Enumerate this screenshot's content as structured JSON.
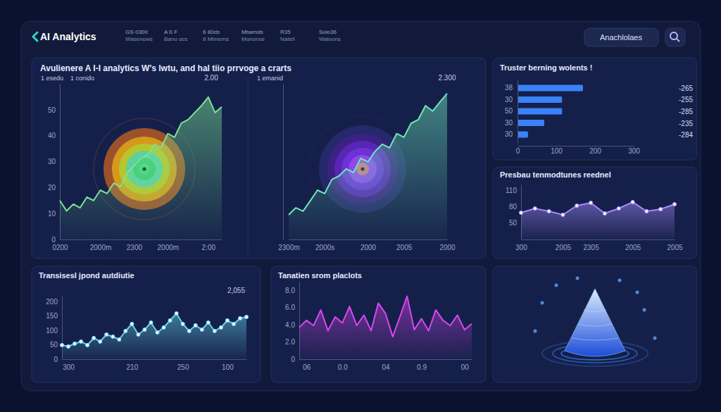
{
  "header": {
    "logo": "AI Analytics",
    "nav": [
      [
        "GS·0300",
        "Wasenows"
      ],
      [
        "A ß F",
        "Banu ocs"
      ],
      [
        "6 80ds",
        "8 Mlmems"
      ],
      [
        "Mbamds",
        "Mononse"
      ],
      [
        "R35",
        "Nateil"
      ],
      [
        "Sulo36",
        "Waloons"
      ]
    ],
    "search": "Anachlolaes"
  },
  "overview_title": "Avulienere A I-I analytics W's lwtu, and hal tiio prrvoge a crarts",
  "chart_data": [
    {
      "type": "line",
      "title": "1 esedu",
      "subtitle": "1 conido",
      "annotations": [
        "2.00"
      ],
      "color": "#7be495",
      "categories": [
        "0200",
        null,
        null,
        null,
        null,
        null,
        "2000m",
        null,
        null,
        null,
        null,
        "2300",
        null,
        null,
        null,
        null,
        "2000m",
        null,
        null,
        null,
        null,
        null,
        "2:00",
        null,
        null
      ],
      "values": [
        15,
        11,
        13.6,
        12.2,
        16.3,
        15,
        19,
        17.7,
        21.7,
        20.4,
        25.8,
        28.5,
        31.3,
        32.6,
        36.7,
        35.3,
        40.8,
        39.4,
        44.8,
        46.2,
        48.9,
        51.6,
        54.9,
        48.9,
        51.1
      ],
      "ylim": [
        0,
        60
      ],
      "yticks": [
        0,
        10,
        20,
        30,
        40,
        50
      ],
      "grid": false
    },
    {
      "type": "line",
      "title": "1 emanid",
      "annotations": [
        "2.300"
      ],
      "color": "#6ee7b7",
      "categories": [
        "2300m",
        null,
        null,
        null,
        null,
        "2000s",
        null,
        null,
        null,
        null,
        null,
        "2000",
        null,
        null,
        null,
        null,
        "2005",
        null,
        null,
        null,
        null,
        null,
        "2000"
      ],
      "values": [
        9.5,
        12.2,
        10.9,
        14.9,
        19,
        17.7,
        23.1,
        24.5,
        27.2,
        25.8,
        31.3,
        29.9,
        34,
        36.7,
        35.3,
        40.8,
        39.4,
        44.8,
        46.2,
        51.6,
        49.5,
        53,
        56.3
      ],
      "ylim": [
        0,
        60
      ],
      "tick_labels": "x",
      "grid": false
    },
    {
      "type": "bar",
      "orientation": "horizontal",
      "title": "Truster berning wolents !",
      "color": "#3b82f6",
      "categories": [
        "38",
        "30",
        "50",
        "30",
        "30"
      ],
      "values": [
        169,
        115,
        115,
        69,
        27
      ],
      "annotations": [
        "-265",
        "-255",
        "-285",
        "-235",
        "-284"
      ],
      "xlim": [
        0,
        300
      ],
      "xticks": [
        0,
        100,
        200,
        300
      ],
      "grid": false
    },
    {
      "type": "line",
      "title": "Presbau tenmodtunes reednel",
      "color": "#a78bfa",
      "marker": "circle",
      "categories": [
        "300",
        null,
        null,
        "2005",
        null,
        "2305",
        null,
        null,
        "2005",
        null,
        null,
        "2005"
      ],
      "values": [
        68.7,
        76.4,
        71.3,
        64.9,
        81.5,
        86.7,
        67.4,
        76.4,
        88,
        71.3,
        75.1,
        84.1
      ],
      "ylim": [
        20,
        120
      ],
      "yticks": [
        50,
        80,
        110
      ],
      "grid": false
    },
    {
      "type": "line",
      "title": "Transisesl jpond autdiutie",
      "annotations": [
        "2,055"
      ],
      "color": "#67d4ea",
      "marker": "circle",
      "categories": [
        null,
        "300",
        null,
        null,
        null,
        null,
        null,
        null,
        null,
        null,
        null,
        "210",
        null,
        null,
        null,
        null,
        null,
        null,
        null,
        "250",
        null,
        null,
        null,
        null,
        null,
        null,
        "100",
        null,
        null,
        null
      ],
      "values": [
        48.8,
        43.9,
        53.7,
        61,
        48.8,
        73.2,
        61,
        85.4,
        78,
        68.3,
        97.6,
        122,
        85.4,
        102.4,
        126.8,
        92.7,
        109.8,
        134.1,
        158.5,
        122,
        97.6,
        117.1,
        102.4,
        126.8,
        97.6,
        109.8,
        134.1,
        122,
        141.5,
        146.3
      ],
      "ylim": [
        0,
        220
      ],
      "yticks": [
        0,
        50,
        100,
        150,
        200
      ],
      "grid": false
    },
    {
      "type": "line",
      "title": "Tanatien srom placlots",
      "color": "#d946ef",
      "categories": [
        null,
        "06",
        null,
        null,
        null,
        null,
        "0.0",
        null,
        null,
        null,
        null,
        null,
        "04",
        null,
        null,
        null,
        null,
        "0.9",
        null,
        null,
        null,
        null,
        null,
        "00",
        null
      ],
      "values": [
        3.7,
        4.5,
        3.9,
        5.7,
        3.3,
        4.9,
        4.2,
        6.1,
        3.9,
        5.1,
        3.3,
        6.5,
        5.3,
        2.6,
        4.9,
        7.3,
        3.4,
        4.7,
        3.3,
        5.7,
        4.5,
        3.9,
        5.1,
        3.4,
        4.1
      ],
      "ylim": [
        0,
        9
      ],
      "yticks": [
        0,
        {
          "value": 2,
          "label": "2.0"
        },
        {
          "value": 4,
          "label": "4.0"
        },
        {
          "value": 6,
          "label": "6.0"
        },
        {
          "value": 8,
          "label": "8.0"
        }
      ],
      "grid": false
    }
  ]
}
